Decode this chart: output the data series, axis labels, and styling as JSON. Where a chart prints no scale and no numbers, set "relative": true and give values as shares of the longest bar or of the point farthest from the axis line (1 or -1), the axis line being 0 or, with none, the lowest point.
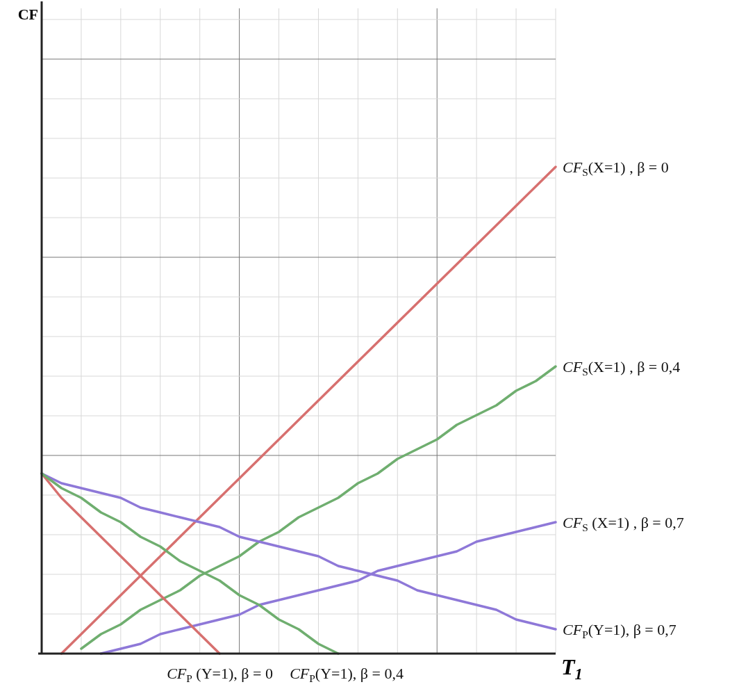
{
  "chart_data": {
    "type": "line",
    "relative": true,
    "grid": true,
    "xlabel": "T$_{1}$",
    "annotations": [
      "CF"
    ],
    "categories": [
      null,
      null,
      null,
      null,
      null,
      null,
      null,
      null,
      null,
      null,
      null,
      null,
      null,
      null,
      null,
      null,
      null,
      null,
      null,
      null,
      null,
      null,
      null,
      null,
      null,
      null,
      null
    ],
    "series": [
      {
        "name": "CF$_{S}$(X=1) , β = 0",
        "color": "#d7706f",
        "values": [
          null,
          0,
          0.04,
          0.08,
          0.12,
          0.16,
          0.2,
          0.24,
          0.28,
          0.32,
          0.36,
          0.4,
          0.44,
          0.48,
          0.52,
          0.56,
          0.6,
          0.64,
          0.68,
          0.72,
          0.76,
          0.8,
          0.84,
          0.88,
          0.92,
          0.96,
          1
        ]
      },
      {
        "name": "CF$_{S}$(X=1) , β = 0,4",
        "color": "#6fae6f",
        "values": [
          null,
          null,
          0.01,
          0.04,
          0.06,
          0.09,
          0.11,
          0.13,
          0.16,
          0.18,
          0.2,
          0.23,
          0.25,
          0.28,
          0.3,
          0.32,
          0.35,
          0.37,
          0.4,
          0.42,
          0.44,
          0.47,
          0.49,
          0.51,
          0.54,
          0.56,
          0.59
        ]
      },
      {
        "name": "CF$_{S}$ (X=1) , β = 0,7",
        "color": "#8e78d8",
        "values": [
          null,
          null,
          null,
          0,
          0.01,
          0.02,
          0.04,
          0.05,
          0.06,
          0.07,
          0.08,
          0.1,
          0.11,
          0.12,
          0.13,
          0.14,
          0.15,
          0.17,
          0.18,
          0.19,
          0.2,
          0.21,
          0.23,
          0.24,
          0.25,
          0.26,
          0.27
        ]
      },
      {
        "name": "CF$_{P}$(Y=1), β = 0,7",
        "color": "#8e78d8",
        "values": [
          0.37,
          0.35,
          0.34,
          0.33,
          0.32,
          0.3,
          0.29,
          0.28,
          0.27,
          0.26,
          0.24,
          0.23,
          0.22,
          0.21,
          0.2,
          0.18,
          0.17,
          0.16,
          0.15,
          0.13,
          0.12,
          0.11,
          0.1,
          0.09,
          0.07,
          0.06,
          0.05
        ]
      },
      {
        "name": "CF$_{P}$ (Y=1), β = 0",
        "color": "#d7706f",
        "values": [
          0.37,
          0.32,
          0.28,
          0.24,
          0.2,
          0.16,
          0.12,
          0.08,
          0.04,
          0,
          null,
          null,
          null,
          null,
          null,
          null,
          null,
          null,
          null,
          null,
          null,
          null,
          null,
          null,
          null,
          null,
          null
        ]
      },
      {
        "name": "CF$_{P}$(Y=1), β = 0,4",
        "color": "#6fae6f",
        "values": [
          0.37,
          0.34,
          0.32,
          0.29,
          0.27,
          0.24,
          0.22,
          0.19,
          0.17,
          0.15,
          0.12,
          0.1,
          0.07,
          0.05,
          0.02,
          0,
          null,
          null,
          null,
          null,
          null,
          null,
          null,
          null,
          null,
          null,
          null
        ]
      }
    ]
  }
}
